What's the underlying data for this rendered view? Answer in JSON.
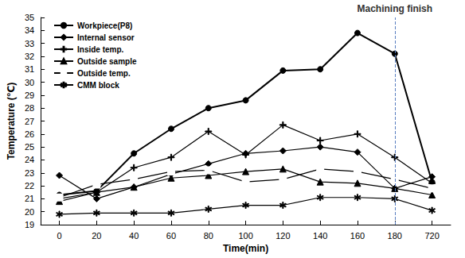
{
  "chart_data": {
    "type": "line",
    "x_label": "Time(min)",
    "y_label": "Temperature (℃)",
    "categories": [
      0,
      20,
      40,
      60,
      80,
      100,
      120,
      140,
      160,
      180,
      720
    ],
    "series": [
      {
        "name": "Workpiece(P8)",
        "color": "#000000",
        "marker": "circle",
        "values": [
          21.3,
          21.6,
          24.5,
          26.4,
          28.0,
          28.6,
          30.9,
          31.0,
          33.8,
          32.2,
          22.3
        ]
      },
      {
        "name": "Internal sensor",
        "color": "#000000",
        "marker": "diamond",
        "values": [
          22.8,
          21.0,
          21.9,
          22.9,
          23.7,
          24.5,
          24.7,
          25.0,
          24.6,
          21.8,
          22.7
        ]
      },
      {
        "name": "Inside temp.",
        "color": "#000000",
        "marker": "plus",
        "values": [
          21.0,
          21.5,
          23.4,
          24.2,
          26.2,
          24.4,
          26.7,
          25.5,
          26.0,
          24.2,
          22.2
        ]
      },
      {
        "name": "Outside sample",
        "color": "#000000",
        "marker": "triangle",
        "values": [
          20.8,
          21.5,
          21.9,
          22.6,
          22.8,
          23.1,
          23.3,
          22.3,
          22.2,
          21.8,
          21.3
        ]
      },
      {
        "name": "Outside temp.",
        "color": "#000000",
        "marker": "square_open",
        "values": [
          21.1,
          22.1,
          22.5,
          23.1,
          23.2,
          22.3,
          22.5,
          23.3,
          23.1,
          22.5,
          21.8
        ]
      },
      {
        "name": "CMM block",
        "color": "#000000",
        "marker": "asterisk",
        "values": [
          19.8,
          19.9,
          19.9,
          19.9,
          20.2,
          20.5,
          20.5,
          21.1,
          21.1,
          21.0,
          20.1
        ]
      }
    ],
    "ylim": [
      19,
      35
    ],
    "yticks": [
      19,
      20,
      21,
      22,
      23,
      24,
      25,
      26,
      27,
      28,
      29,
      30,
      31,
      32,
      33,
      34,
      35
    ],
    "annotation": {
      "x": 180,
      "text": "Machining finish"
    },
    "legend": "upper left",
    "grid": false
  }
}
